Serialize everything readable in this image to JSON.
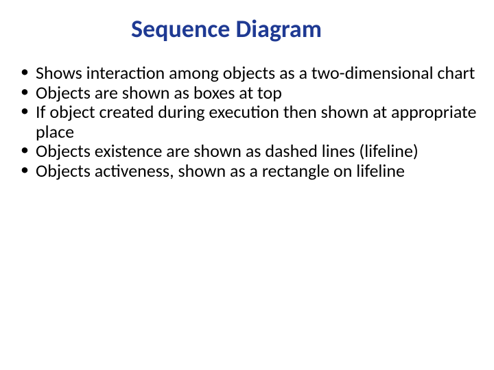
{
  "title": {
    "text": "Sequence Diagram",
    "color": "#1f3a93",
    "fontsize": 36,
    "fontweight": "bold"
  },
  "bullets": {
    "items": [
      "Shows interaction among objects as a two-dimensional chart",
      "Objects are shown as boxes at top",
      "If object created during execution then shown at appropriate place",
      "Objects existence are shown as dashed lines (lifeline)",
      "Objects activeness, shown as a rectangle on lifeline"
    ],
    "text_color": "#000000",
    "bullet_color": "#000000",
    "fontsize": 26,
    "line_height": 1.1
  },
  "background_color": "#ffffff"
}
